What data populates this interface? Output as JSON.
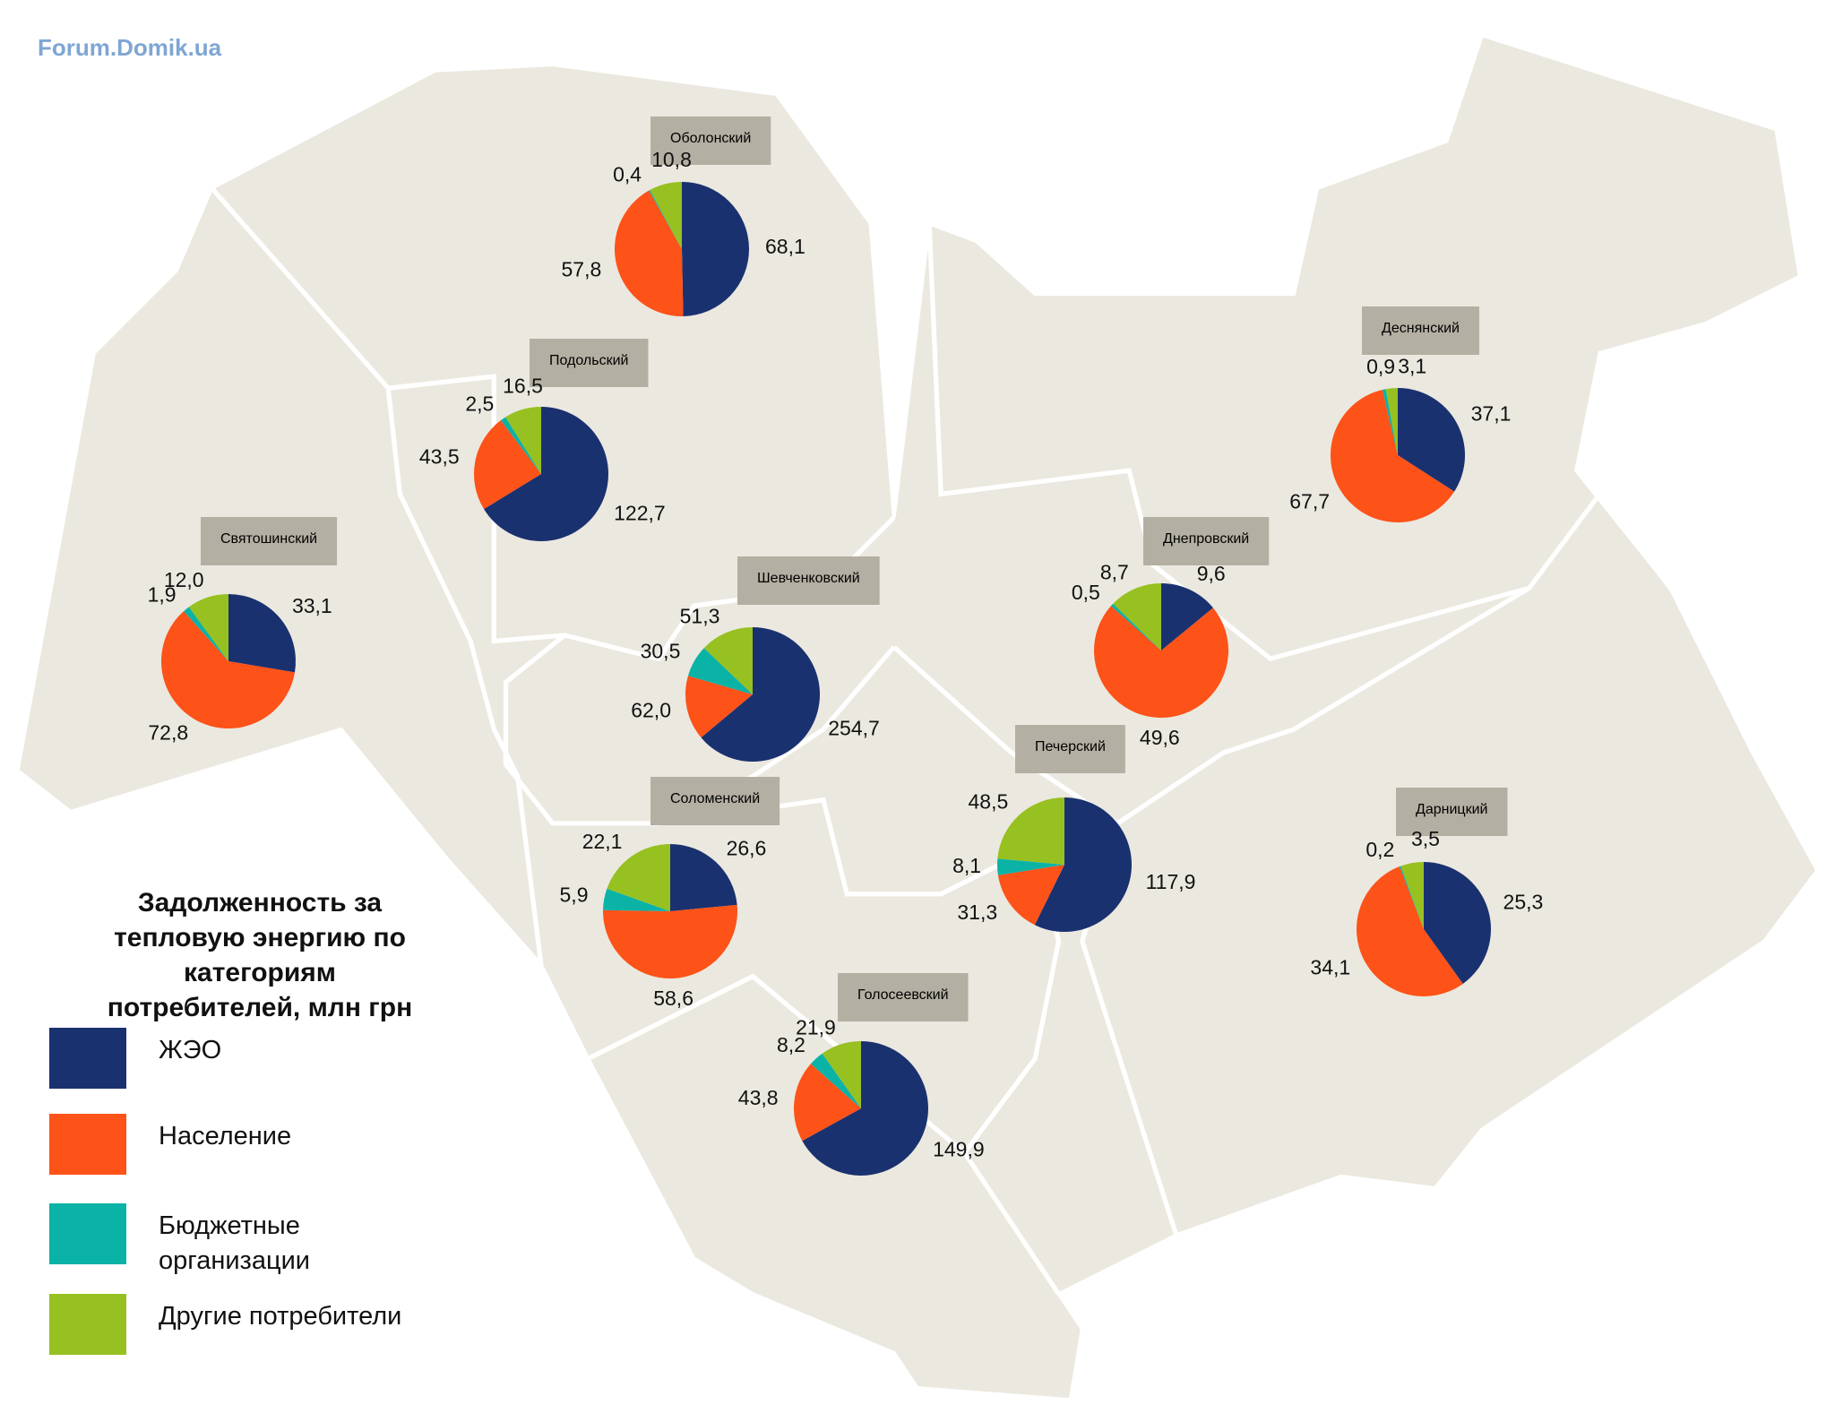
{
  "watermark": "Forum.Domik.ua",
  "legend": {
    "title": "Задолженность за тепловую энергию по категориям потребителей, млн грн",
    "items": [
      {
        "name": "ЖЭО",
        "color": "#1a3170"
      },
      {
        "name": "Население",
        "color": "#fd5218"
      },
      {
        "name": "Бюджетные организации",
        "color": "#0bb3a7"
      },
      {
        "name": "Другие потребители",
        "color": "#97c021"
      }
    ]
  },
  "chart_data": [
    {
      "type": "pie",
      "title": "Оболонский",
      "values": [
        68.1,
        57.8,
        0.4,
        10.8
      ],
      "value_labels": [
        "68,1",
        "57,8",
        "0,4",
        "10,8"
      ]
    },
    {
      "type": "pie",
      "title": "Подольский",
      "values": [
        122.7,
        43.5,
        2.5,
        16.5
      ],
      "value_labels": [
        "122,7",
        "43,5",
        "2,5",
        "16,5"
      ]
    },
    {
      "type": "pie",
      "title": "Святошинский",
      "values": [
        33.1,
        72.8,
        1.9,
        12.0
      ],
      "value_labels": [
        "33,1",
        "72,8",
        "1,9",
        "12,0"
      ]
    },
    {
      "type": "pie",
      "title": "Шевченковский",
      "values": [
        254.7,
        62.0,
        30.5,
        51.3
      ],
      "value_labels": [
        "254,7",
        "62,0",
        "30,5",
        "51,3"
      ]
    },
    {
      "type": "pie",
      "title": "Соломенский",
      "values": [
        26.6,
        58.6,
        5.9,
        22.1
      ],
      "value_labels": [
        "26,6",
        "58,6",
        "5,9",
        "22,1"
      ]
    },
    {
      "type": "pie",
      "title": "Голосеевский",
      "values": [
        149.9,
        43.8,
        8.2,
        21.9
      ],
      "value_labels": [
        "149,9",
        "43,8",
        "8,2",
        "21,9"
      ]
    },
    {
      "type": "pie",
      "title": "Печерский",
      "values": [
        117.9,
        31.3,
        8.1,
        48.5
      ],
      "value_labels": [
        "117,9",
        "31,3",
        "8,1",
        "48,5"
      ]
    },
    {
      "type": "pie",
      "title": "Днепровский",
      "values": [
        9.6,
        49.6,
        0.5,
        8.7
      ],
      "value_labels": [
        "9,6",
        "49,6",
        "0,5",
        "8,7"
      ]
    },
    {
      "type": "pie",
      "title": "Деснянский",
      "values": [
        37.1,
        67.7,
        0.9,
        3.1
      ],
      "value_labels": [
        "37,1",
        "67,7",
        "0,9",
        "3,1"
      ]
    },
    {
      "type": "pie",
      "title": "Дарницкий",
      "values": [
        25.3,
        34.1,
        0.2,
        3.5
      ],
      "value_labels": [
        "25,3",
        "34,1",
        "0,2",
        "3,5"
      ]
    }
  ]
}
